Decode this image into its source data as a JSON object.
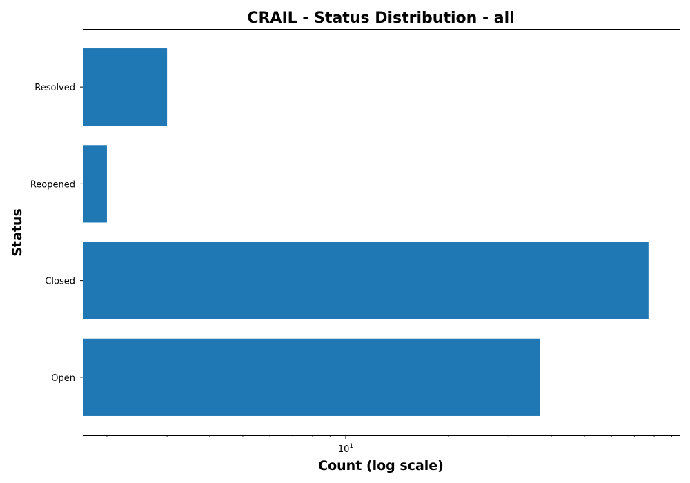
{
  "chart_data": {
    "type": "bar",
    "orientation": "horizontal",
    "title": "CRAIL - Status Distribution - all",
    "xlabel": "Count (log scale)",
    "ylabel": "Status",
    "xscale": "log",
    "xlim": [
      1.7,
      95
    ],
    "grid": false,
    "categories": [
      "Open",
      "Closed",
      "Reopened",
      "Resolved"
    ],
    "values": [
      37,
      77,
      2,
      3
    ],
    "bar_color": "#1f77b4",
    "x_major_ticks": [
      {
        "value": 10,
        "base": "10",
        "exp": "1"
      }
    ]
  }
}
